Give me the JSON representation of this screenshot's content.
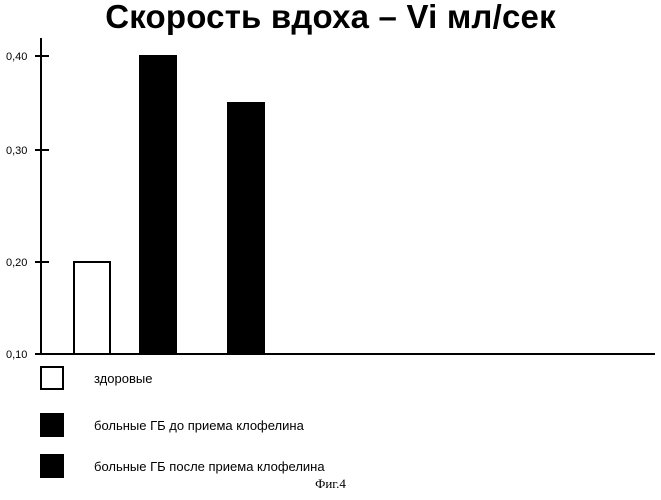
{
  "chart_data": {
    "type": "bar",
    "title": "Скорость вдоха – Vi мл/сек",
    "xlabel": "",
    "ylabel": "",
    "ylim": [
      0.1,
      0.42
    ],
    "y_ticks": [
      0.1,
      0.2,
      0.3,
      0.4
    ],
    "y_tick_labels": [
      "0,10",
      "0,20",
      "0,30",
      "0,40"
    ],
    "y_scale": "nonlinear (0,10–0,20 segment compressed relative to 0,20–0,40)",
    "grid": false,
    "legend_position": "bottom-left",
    "categories": [
      "здоровые",
      "больные ГБ до приема клофелина",
      "больные ГБ после приема клофелина"
    ],
    "values": [
      0.2,
      0.4,
      0.35
    ],
    "colors": [
      "#ffffff",
      "#000000",
      "#000000"
    ],
    "caption": "Фиг.4"
  }
}
